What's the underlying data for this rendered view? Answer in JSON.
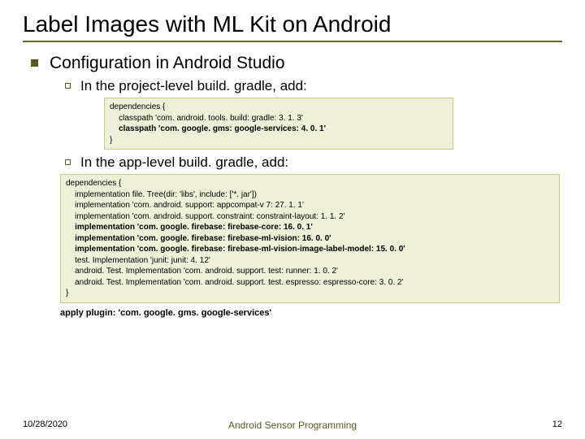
{
  "title": "Label Images with ML Kit on Android",
  "level1": "Configuration in Android Studio",
  "bullet1": "In the project-level build. gradle, add:",
  "bullet2": "In the app-level build. gradle, add:",
  "code1": {
    "l1": "dependencies {",
    "l2": "    classpath 'com. android. tools. build: gradle: 3. 1. 3'",
    "l3": "    classpath 'com. google. gms: google-services: 4. 0. 1'",
    "l4": "}"
  },
  "code2": {
    "l1": "dependencies {",
    "l2": "    implementation file. Tree(dir: 'libs', include: ['*. jar'])",
    "l3": "    implementation 'com. android. support: appcompat-v 7: 27. 1. 1'",
    "l4": "    implementation 'com. android. support. constraint: constraint-layout: 1. 1. 2'",
    "l5": "    implementation 'com. google. firebase: firebase-core: 16. 0. 1'",
    "l6": "    implementation 'com. google. firebase: firebase-ml-vision: 16. 0. 0'",
    "l7": "    implementation 'com. google. firebase: firebase-ml-vision-image-label-model: 15. 0. 0'",
    "l8": "    test. Implementation 'junit: junit: 4. 12'",
    "l9": "    android. Test. Implementation 'com. android. support. test: runner: 1. 0. 2'",
    "l10": "    android. Test. Implementation 'com. android. support. test. espresso: espresso-core: 3. 0. 2'",
    "l11": "}"
  },
  "apply": "apply plugin: 'com. google. gms. google-services'",
  "footer": {
    "date": "10/28/2020",
    "center": "Android Sensor Programming",
    "page": "12"
  },
  "colors": {
    "accent": "#5a5a1f",
    "codebg": "#eef0d8",
    "codeborder": "#c9c98a"
  }
}
